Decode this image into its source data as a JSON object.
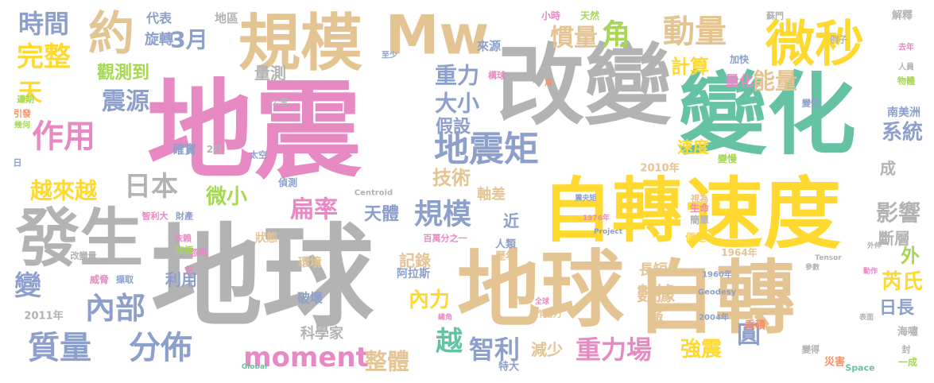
{
  "words": [
    "地震",
    "地球",
    "地球",
    "自轉",
    "改變",
    "變化",
    "自轉",
    "速度",
    "規模",
    "Mw",
    "微秒",
    "發生",
    "約",
    "地震矩",
    "動量",
    "慣量",
    "角",
    "時間",
    "完整",
    "天",
    "作用",
    "日本",
    "越來越",
    "3月",
    "旋轉",
    "代表",
    "地區",
    "觀測到",
    "震源",
    "量測",
    "重力",
    "大小",
    "假設",
    "計算",
    "量化",
    "能量",
    "系統",
    "速度",
    "技術",
    "軸差",
    "微小",
    "扁率",
    "天體",
    "規模",
    "影響",
    "斷層",
    "外",
    "內部",
    "變",
    "利用",
    "質量",
    "分佈",
    "moment",
    "整體",
    "越",
    "智利",
    "減少",
    "重力場",
    "強震",
    "圓",
    "芮氏",
    "日長",
    "內力",
    "數據",
    "極",
    "長短",
    "記錄",
    "科學家",
    "破壞",
    "狀態",
    "環境",
    "近",
    "成",
    "2010年",
    "1964年",
    "1960年",
    "Geodesy",
    "2004年",
    "2011年",
    "Centroid",
    "百萬分之一",
    "人類",
    "歷年",
    "阿拉斯",
    "南美洲",
    "解釋",
    "特大",
    "乘積",
    "海嘯",
    "便是",
    "生命",
    "簡單",
    "災害",
    "Space",
    "一成",
    "封",
    "變得",
    "變慢",
    "加快",
    "蘇門",
    "例子",
    "去年",
    "人員",
    "物體",
    "變快",
    "小時",
    "天然",
    "至少",
    "來源",
    "構球",
    "月",
    "確實",
    "2月",
    "太空",
    "偵測",
    "公里",
    "週期",
    "引發",
    "幾何",
    "日",
    "忽略",
    "依賴",
    "守恆",
    "倍",
    "財產",
    "智利大",
    "改變量",
    "威脅",
    "擷取",
    "Project",
    "1976年",
    "震央矩",
    "Global",
    "作用力",
    "全球",
    "總角",
    "表面",
    "視為",
    "Tensor",
    "參數",
    "動作",
    "外伸"
  ]
}
